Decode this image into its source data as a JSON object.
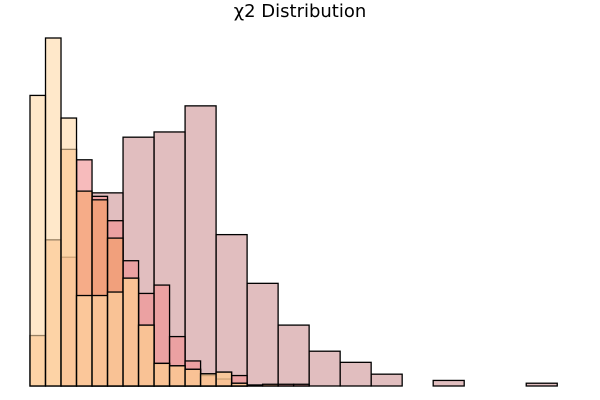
{
  "chart_data": {
    "type": "histogram",
    "title": "χ2 Distribution",
    "xlabel": "",
    "ylabel": "",
    "xlim": [
      0,
      34.5
    ],
    "ylim": [
      0,
      1
    ],
    "grid": false,
    "axes_visible": false,
    "legend": "none",
    "series": [
      {
        "color": "#c9888b",
        "opacity": 0.55,
        "bins": [
          {
            "x0": 4.0,
            "x1": 6.0,
            "height": 0.555
          },
          {
            "x0": 6.0,
            "x1": 8.0,
            "height": 0.715
          },
          {
            "x0": 8.0,
            "x1": 10.0,
            "height": 0.73
          },
          {
            "x0": 10.0,
            "x1": 12.0,
            "height": 0.805
          },
          {
            "x0": 12.0,
            "x1": 14.0,
            "height": 0.435
          },
          {
            "x0": 14.0,
            "x1": 16.0,
            "height": 0.295
          },
          {
            "x0": 16.0,
            "x1": 18.0,
            "height": 0.175
          },
          {
            "x0": 18.0,
            "x1": 20.0,
            "height": 0.1
          },
          {
            "x0": 20.0,
            "x1": 22.0,
            "height": 0.068
          },
          {
            "x0": 22.0,
            "x1": 24.0,
            "height": 0.034
          },
          {
            "x0": 24.0,
            "x1": 26.0,
            "height": 0.0
          },
          {
            "x0": 26.0,
            "x1": 28.0,
            "height": 0.016
          },
          {
            "x0": 28.0,
            "x1": 30.0,
            "height": 0.0
          },
          {
            "x0": 30.0,
            "x1": 32.0,
            "height": 0.0
          },
          {
            "x0": 32.0,
            "x1": 34.0,
            "height": 0.008
          }
        ]
      },
      {
        "color": "#f28d8f",
        "opacity": 0.6,
        "bins": [
          {
            "x0": 2.0,
            "x1": 3.0,
            "height": 0.37
          },
          {
            "x0": 3.0,
            "x1": 4.0,
            "height": 0.65
          },
          {
            "x0": 4.0,
            "x1": 5.0,
            "height": 0.545
          },
          {
            "x0": 5.0,
            "x1": 6.0,
            "height": 0.475
          },
          {
            "x0": 6.0,
            "x1": 7.0,
            "height": 0.36
          },
          {
            "x0": 7.0,
            "x1": 8.0,
            "height": 0.266
          },
          {
            "x0": 8.0,
            "x1": 9.0,
            "height": 0.29
          },
          {
            "x0": 9.0,
            "x1": 10.0,
            "height": 0.142
          },
          {
            "x0": 10.0,
            "x1": 11.0,
            "height": 0.072
          },
          {
            "x0": 11.0,
            "x1": 12.0,
            "height": 0.03
          },
          {
            "x0": 12.0,
            "x1": 13.0,
            "height": 0.02
          },
          {
            "x0": 13.0,
            "x1": 14.0,
            "height": 0.03
          },
          {
            "x0": 14.0,
            "x1": 15.0,
            "height": 0.003
          },
          {
            "x0": 15.0,
            "x1": 16.0,
            "height": 0.0
          },
          {
            "x0": 16.0,
            "x1": 17.0,
            "height": 0.005
          },
          {
            "x0": 17.0,
            "x1": 18.0,
            "height": 0.005
          }
        ]
      },
      {
        "color": "#f6a05c",
        "opacity": 0.55,
        "bins": [
          {
            "x0": 0.0,
            "x1": 1.0,
            "height": 0.145
          },
          {
            "x0": 1.0,
            "x1": 2.0,
            "height": 0.42
          },
          {
            "x0": 2.0,
            "x1": 3.0,
            "height": 0.68
          },
          {
            "x0": 3.0,
            "x1": 4.0,
            "height": 0.56
          },
          {
            "x0": 4.0,
            "x1": 5.0,
            "height": 0.535
          },
          {
            "x0": 5.0,
            "x1": 6.0,
            "height": 0.425
          },
          {
            "x0": 6.0,
            "x1": 7.0,
            "height": 0.31
          },
          {
            "x0": 7.0,
            "x1": 8.0,
            "height": 0.175
          },
          {
            "x0": 8.0,
            "x1": 9.0,
            "height": 0.065
          },
          {
            "x0": 9.0,
            "x1": 10.0,
            "height": 0.058
          },
          {
            "x0": 10.0,
            "x1": 11.0,
            "height": 0.048
          },
          {
            "x0": 11.0,
            "x1": 12.0,
            "height": 0.035
          },
          {
            "x0": 12.0,
            "x1": 13.0,
            "height": 0.04
          },
          {
            "x0": 13.0,
            "x1": 14.0,
            "height": 0.008
          },
          {
            "x0": 14.0,
            "x1": 15.0,
            "height": 0.0
          },
          {
            "x0": 15.0,
            "x1": 16.0,
            "height": 0.005
          }
        ]
      },
      {
        "color": "#ffd9a6",
        "opacity": 0.6,
        "bins": [
          {
            "x0": 0.0,
            "x1": 1.0,
            "height": 0.835
          },
          {
            "x0": 1.0,
            "x1": 2.0,
            "height": 1.0
          },
          {
            "x0": 2.0,
            "x1": 3.0,
            "height": 0.77
          },
          {
            "x0": 3.0,
            "x1": 4.0,
            "height": 0.26
          },
          {
            "x0": 4.0,
            "x1": 5.0,
            "height": 0.26
          },
          {
            "x0": 5.0,
            "x1": 6.0,
            "height": 0.27
          },
          {
            "x0": 6.0,
            "x1": 7.0,
            "height": 0.31
          },
          {
            "x0": 7.0,
            "x1": 8.0,
            "height": 0.175
          },
          {
            "x0": 8.0,
            "x1": 9.0,
            "height": 0.065
          },
          {
            "x0": 9.0,
            "x1": 10.0,
            "height": 0.058
          },
          {
            "x0": 10.0,
            "x1": 11.0,
            "height": 0.048
          },
          {
            "x0": 11.0,
            "x1": 12.0,
            "height": 0.035
          },
          {
            "x0": 12.0,
            "x1": 13.0,
            "height": 0.04
          },
          {
            "x0": 13.0,
            "x1": 14.0,
            "height": 0.008
          }
        ]
      }
    ]
  }
}
